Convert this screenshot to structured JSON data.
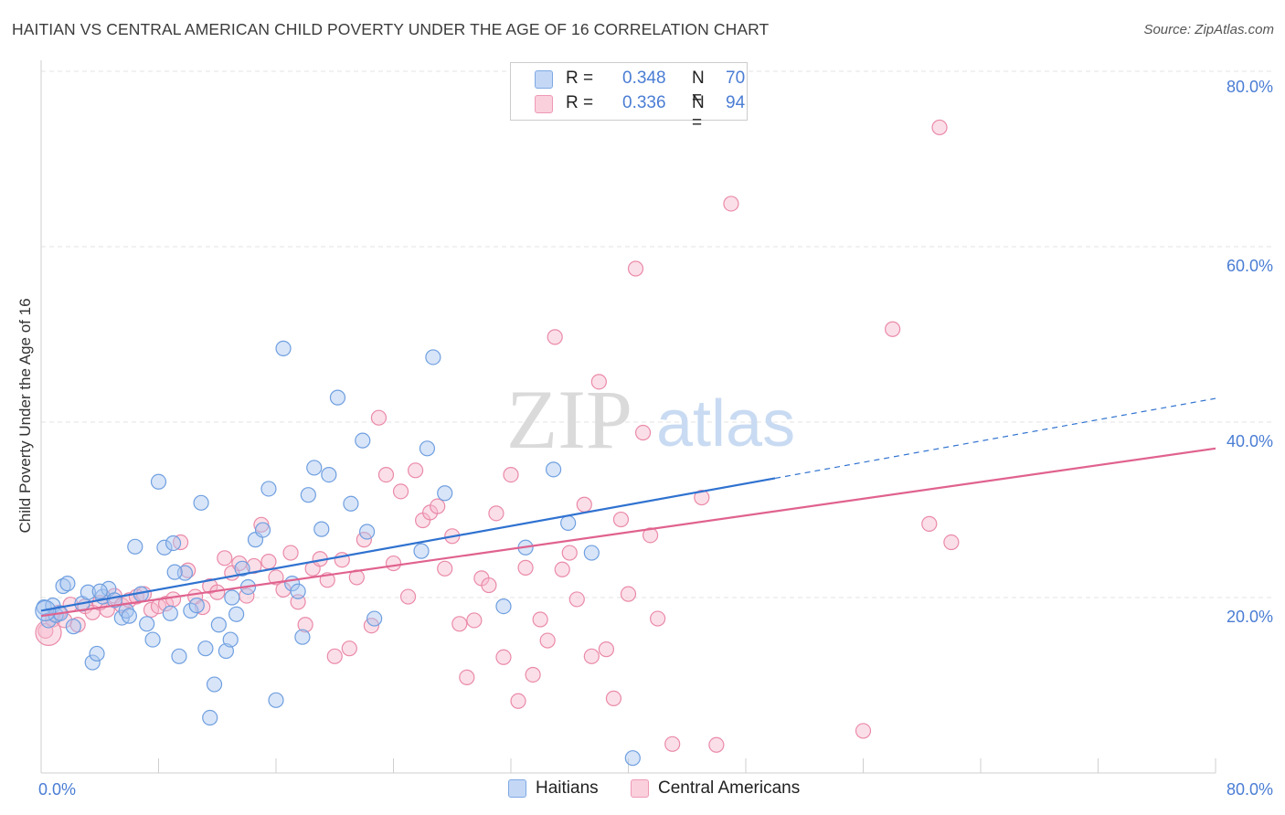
{
  "title": "HAITIAN VS CENTRAL AMERICAN CHILD POVERTY UNDER THE AGE OF 16 CORRELATION CHART",
  "source": "Source: ZipAtlas.com",
  "watermark": {
    "zip": "ZIP",
    "atlas": "atlas"
  },
  "legend": {
    "haitians": {
      "r_label": "R =",
      "r_value": "0.348",
      "n_label": "N =",
      "n_value": "70"
    },
    "central": {
      "r_label": "R =",
      "r_value": "0.336",
      "n_label": "N =",
      "n_value": "94"
    }
  },
  "colors": {
    "blue_fill": "#a9c6f0",
    "blue_stroke": "#6f9fe0",
    "blue_line": "#2f72d0",
    "pink_fill": "#f6b8cb",
    "pink_stroke": "#ea8aa8",
    "pink_line": "#e0628e",
    "tick_label": "#4a7dd4",
    "grid": "#e3e3e3"
  },
  "chart_data": {
    "type": "scatter",
    "title": "HAITIAN VS CENTRAL AMERICAN CHILD POVERTY UNDER THE AGE OF 16 CORRELATION CHART",
    "xlabel": "",
    "ylabel": "Child Poverty Under the Age of 16",
    "xlim": [
      0,
      80
    ],
    "ylim": [
      0,
      80
    ],
    "x_tick_labels": [
      "0.0%",
      "80.0%"
    ],
    "y_ticks": [
      20,
      40,
      60,
      80
    ],
    "y_tick_labels": [
      "20.0%",
      "40.0%",
      "60.0%",
      "80.0%"
    ],
    "grid": true,
    "legend_position": "top-center",
    "series": [
      {
        "name": "Haitians",
        "color": "#a9c6f0",
        "trend": {
          "x0": 0,
          "y0": 18.5,
          "x1": 50,
          "y1": 33.6,
          "dashed_to_x": 80,
          "dashed_to_y": 42.7
        },
        "points": [
          [
            0.2,
            18.9
          ],
          [
            0.5,
            17.4
          ],
          [
            0.8,
            19.1
          ],
          [
            1.0,
            18.0
          ],
          [
            1.5,
            21.3
          ],
          [
            1.8,
            21.6
          ],
          [
            2.2,
            16.7
          ],
          [
            2.8,
            19.3
          ],
          [
            3.2,
            20.6
          ],
          [
            3.5,
            12.6
          ],
          [
            3.8,
            13.6
          ],
          [
            4.2,
            20.1
          ],
          [
            4.6,
            21.0
          ],
          [
            5.0,
            19.7
          ],
          [
            5.5,
            17.7
          ],
          [
            5.8,
            18.5
          ],
          [
            6.4,
            25.8
          ],
          [
            6.8,
            20.4
          ],
          [
            7.2,
            17.0
          ],
          [
            7.6,
            15.2
          ],
          [
            8.0,
            33.2
          ],
          [
            8.4,
            25.7
          ],
          [
            8.8,
            18.2
          ],
          [
            9.0,
            26.2
          ],
          [
            9.4,
            13.3
          ],
          [
            9.8,
            22.8
          ],
          [
            10.2,
            18.5
          ],
          [
            10.6,
            19.1
          ],
          [
            10.9,
            30.8
          ],
          [
            11.2,
            14.2
          ],
          [
            11.5,
            6.3
          ],
          [
            11.8,
            10.1
          ],
          [
            12.1,
            16.9
          ],
          [
            12.6,
            13.9
          ],
          [
            12.9,
            15.2
          ],
          [
            13.3,
            18.1
          ],
          [
            13.7,
            23.3
          ],
          [
            14.1,
            21.2
          ],
          [
            14.6,
            26.6
          ],
          [
            15.1,
            27.7
          ],
          [
            15.5,
            32.4
          ],
          [
            16.0,
            8.3
          ],
          [
            16.5,
            48.4
          ],
          [
            17.1,
            21.6
          ],
          [
            17.5,
            20.7
          ],
          [
            17.8,
            15.5
          ],
          [
            18.2,
            31.7
          ],
          [
            18.6,
            34.8
          ],
          [
            19.1,
            27.8
          ],
          [
            19.6,
            34.0
          ],
          [
            20.2,
            42.8
          ],
          [
            21.1,
            30.7
          ],
          [
            21.9,
            37.9
          ],
          [
            22.2,
            27.5
          ],
          [
            22.7,
            17.6
          ],
          [
            26.3,
            37.0
          ],
          [
            26.7,
            47.4
          ],
          [
            27.5,
            31.9
          ],
          [
            25.9,
            25.3
          ],
          [
            31.5,
            19.0
          ],
          [
            33.0,
            25.7
          ],
          [
            34.9,
            34.6
          ],
          [
            35.9,
            28.5
          ],
          [
            37.5,
            25.1
          ],
          [
            40.3,
            1.7
          ],
          [
            1.3,
            18.2
          ],
          [
            4.0,
            20.7
          ],
          [
            6.0,
            17.9
          ],
          [
            9.1,
            22.9
          ],
          [
            13.0,
            20.0
          ]
        ]
      },
      {
        "name": "Central Americans",
        "color": "#f6b8cb",
        "trend": {
          "x0": 0,
          "y0": 17.9,
          "x1": 80,
          "y1": 37.0
        },
        "points": [
          [
            0.3,
            16.2
          ],
          [
            0.8,
            17.5
          ],
          [
            1.2,
            18.3
          ],
          [
            1.6,
            17.4
          ],
          [
            2.0,
            19.2
          ],
          [
            2.5,
            16.9
          ],
          [
            3.0,
            19.0
          ],
          [
            3.5,
            18.3
          ],
          [
            4.0,
            19.4
          ],
          [
            4.5,
            18.6
          ],
          [
            5.0,
            20.2
          ],
          [
            5.5,
            19.1
          ],
          [
            6.0,
            19.7
          ],
          [
            6.5,
            20.1
          ],
          [
            7.0,
            20.4
          ],
          [
            7.5,
            18.6
          ],
          [
            8.0,
            19.0
          ],
          [
            8.5,
            19.3
          ],
          [
            9.0,
            19.8
          ],
          [
            9.5,
            26.3
          ],
          [
            10.0,
            23.1
          ],
          [
            10.5,
            20.1
          ],
          [
            11.0,
            18.9
          ],
          [
            11.5,
            21.3
          ],
          [
            12.0,
            20.6
          ],
          [
            12.5,
            24.5
          ],
          [
            13.0,
            22.8
          ],
          [
            13.5,
            23.9
          ],
          [
            14.0,
            20.2
          ],
          [
            14.5,
            23.6
          ],
          [
            15.0,
            28.3
          ],
          [
            15.5,
            24.1
          ],
          [
            16.0,
            22.3
          ],
          [
            16.5,
            20.9
          ],
          [
            17.0,
            25.1
          ],
          [
            17.5,
            19.5
          ],
          [
            18.0,
            16.9
          ],
          [
            18.5,
            23.3
          ],
          [
            19.0,
            24.4
          ],
          [
            19.5,
            22.0
          ],
          [
            20.0,
            13.3
          ],
          [
            20.5,
            24.3
          ],
          [
            21.0,
            14.2
          ],
          [
            21.5,
            22.3
          ],
          [
            22.0,
            26.6
          ],
          [
            22.5,
            16.8
          ],
          [
            23.0,
            40.5
          ],
          [
            23.5,
            34.0
          ],
          [
            24.0,
            23.9
          ],
          [
            24.5,
            32.1
          ],
          [
            25.0,
            20.1
          ],
          [
            25.5,
            34.5
          ],
          [
            26.0,
            28.8
          ],
          [
            26.5,
            29.7
          ],
          [
            27.0,
            30.4
          ],
          [
            27.5,
            23.3
          ],
          [
            28.0,
            27.0
          ],
          [
            28.5,
            17.0
          ],
          [
            29.0,
            10.9
          ],
          [
            29.5,
            17.4
          ],
          [
            30.0,
            22.2
          ],
          [
            30.5,
            21.4
          ],
          [
            31.0,
            29.6
          ],
          [
            31.5,
            13.2
          ],
          [
            32.0,
            34.0
          ],
          [
            32.5,
            8.2
          ],
          [
            33.0,
            23.4
          ],
          [
            33.5,
            11.2
          ],
          [
            34.0,
            17.5
          ],
          [
            34.5,
            15.1
          ],
          [
            35.0,
            49.7
          ],
          [
            35.5,
            23.2
          ],
          [
            36.0,
            25.1
          ],
          [
            36.5,
            19.8
          ],
          [
            37.0,
            30.6
          ],
          [
            37.5,
            13.3
          ],
          [
            38.0,
            44.6
          ],
          [
            38.5,
            14.1
          ],
          [
            39.0,
            8.5
          ],
          [
            39.5,
            28.9
          ],
          [
            40.0,
            20.4
          ],
          [
            40.5,
            57.5
          ],
          [
            41.0,
            38.8
          ],
          [
            41.5,
            27.1
          ],
          [
            42.0,
            17.6
          ],
          [
            43.0,
            3.3
          ],
          [
            45.0,
            31.4
          ],
          [
            46.0,
            3.2
          ],
          [
            47.0,
            64.9
          ],
          [
            56.0,
            4.8
          ],
          [
            58.0,
            50.6
          ],
          [
            60.5,
            28.4
          ],
          [
            61.2,
            73.6
          ],
          [
            62.0,
            26.3
          ]
        ]
      }
    ]
  },
  "bottom_legend": {
    "haitians": "Haitians",
    "central": "Central Americans"
  }
}
